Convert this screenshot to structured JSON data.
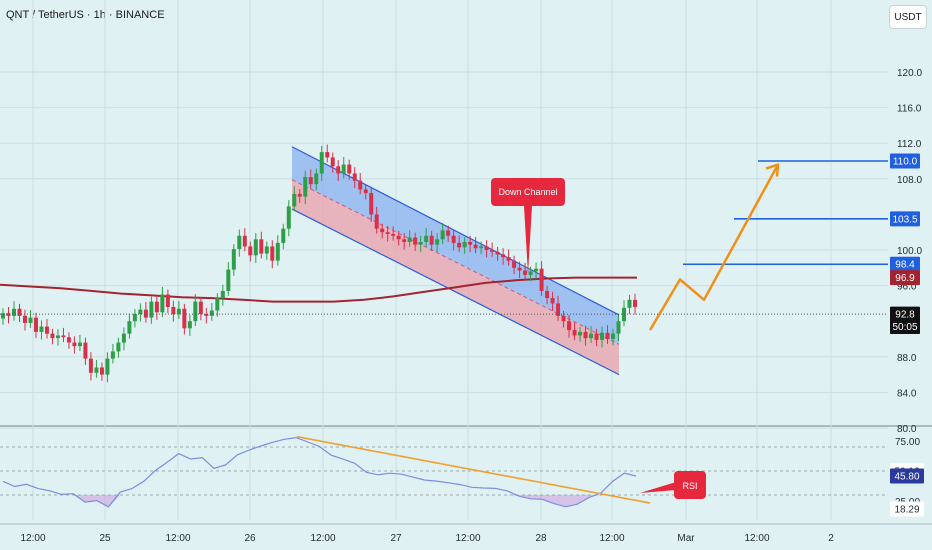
{
  "header": {
    "symbol_title": "QNT / TetherUS · 1h · BINANCE",
    "currency_badge": "USDT"
  },
  "colors": {
    "background": "#e0f1f3",
    "grid": "#c9e0e3",
    "up_candle": "#2e9e48",
    "down_candle": "#d9304a",
    "ma_line": "#a32431",
    "channel_line": "#2a5bdb",
    "channel_upper_fill": "#8ab0f0",
    "channel_lower_fill": "#e8a8b2",
    "projection": "#f0901a",
    "level_line": "#1f5fe0",
    "rsi_line": "#7b8ee0",
    "rsi_trend": "#f0a030",
    "annotation_red": "#e5283d"
  },
  "chart_data": [
    {
      "type": "candlestick",
      "x_axis": {
        "tick_labels": [
          "12:00",
          "25",
          "12:00",
          "26",
          "12:00",
          "27",
          "12:00",
          "28",
          "12:00",
          "Mar",
          "12:00",
          "2"
        ]
      },
      "y_axis": {
        "tick_labels": [
          "120.0",
          "116.0",
          "112.0",
          "108.0",
          "100.0",
          "96.0",
          "88.0",
          "84.0",
          "80.0"
        ],
        "ticks": [
          120,
          116,
          112,
          108,
          100,
          96,
          88,
          84,
          80
        ],
        "range": [
          79.0,
          125.5
        ],
        "label_boxes": [
          {
            "text": "110.0",
            "value": 110.0,
            "color": "#1f5fe0"
          },
          {
            "text": "103.5",
            "value": 103.5,
            "color": "#1f5fe0"
          },
          {
            "text": "98.4",
            "value": 98.4,
            "color": "#1f5fe0"
          },
          {
            "text": "96.9",
            "value": 96.9,
            "color": "#a32431"
          },
          {
            "text": "92.8",
            "value": 92.8,
            "color": "#111111"
          },
          {
            "text": "50:05",
            "value": 91.4,
            "color": "#111111"
          }
        ]
      },
      "candles_close": [
        92.9,
        92.6,
        93.4,
        92.6,
        91.8,
        92.4,
        90.8,
        91.4,
        90.6,
        90.1,
        90.4,
        90.2,
        89.6,
        89.2,
        89.6,
        87.8,
        86.2,
        86.8,
        86.0,
        87.8,
        88.6,
        89.6,
        90.6,
        92.0,
        92.8,
        93.3,
        92.4,
        94.2,
        93.0,
        95.0,
        93.6,
        92.8,
        93.4,
        91.2,
        92.0,
        94.2,
        92.8,
        92.6,
        93.2,
        94.6,
        95.4,
        97.8,
        100.1,
        101.6,
        100.4,
        99.4,
        101.2,
        99.6,
        100.4,
        98.8,
        100.8,
        102.4,
        104.9,
        106.3,
        106.0,
        108.2,
        107.4,
        108.6,
        111.0,
        110.4,
        109.4,
        108.6,
        109.6,
        108.6,
        107.8,
        106.8,
        106.4,
        104.0,
        102.4,
        102.0,
        101.8,
        101.6,
        101.2,
        100.9,
        101.4,
        100.6,
        100.9,
        101.6,
        100.6,
        101.2,
        102.2,
        101.6,
        100.8,
        100.3,
        100.9,
        100.6,
        100.2,
        100.4,
        100.0,
        99.8,
        99.5,
        99.2,
        98.8,
        98.0,
        97.7,
        97.2,
        97.6,
        97.9,
        95.4,
        94.6,
        94.0,
        92.6,
        92.0,
        91.0,
        90.4,
        90.8,
        90.1,
        90.6,
        89.9,
        90.7,
        90.0,
        90.6,
        92.0,
        93.5,
        94.4,
        93.6
      ],
      "moving_average": [
        96.1,
        95.9,
        95.7,
        95.4,
        95.1,
        94.9,
        94.7,
        94.6,
        94.4,
        94.2,
        94.2,
        94.2,
        94.4,
        94.8,
        95.3,
        95.8,
        96.3,
        96.6,
        96.8,
        96.9,
        96.9,
        96.9
      ],
      "channel": {
        "upper": [
          [
            111.6,
            92.7
          ]
        ],
        "mid": [
          [
            107.9,
            89.4
          ]
        ],
        "lower": [
          [
            104.6,
            86.0
          ]
        ]
      },
      "projection_path": [
        91.0,
        96.7,
        94.4,
        109.6
      ],
      "levels": [
        110.0,
        103.5,
        98.4
      ],
      "annotations": [
        {
          "label": "Down Channel",
          "value": 97.3
        }
      ]
    },
    {
      "type": "line",
      "name": "RSI",
      "y_axis": {
        "tick_labels": [
          "75.00",
          "25.00"
        ],
        "range": [
          12,
          85
        ],
        "label_boxes": [
          {
            "text": "50.16",
            "value": 50.16,
            "color": "#ffffff"
          },
          {
            "text": "45.80",
            "value": 45.8,
            "color": "#2b3a9e"
          },
          {
            "text": "18.29",
            "value": 18.29,
            "color": "#ffffff"
          }
        ]
      },
      "levels": [
        70,
        50,
        30
      ],
      "values": [
        41.3,
        37.1,
        38.9,
        35.3,
        33.5,
        30.5,
        31.1,
        24.1,
        25.3,
        20.2,
        32.3,
        35.3,
        41.3,
        50.4,
        57.3,
        64.5,
        60.0,
        61.2,
        52.2,
        55.2,
        63.5,
        67.5,
        70.8,
        73.9,
        76.4,
        77.8,
        74.2,
        70.4,
        63.2,
        59.9,
        56.4,
        48.9,
        46.8,
        48.2,
        47.3,
        44.8,
        42.4,
        41.6,
        40.2,
        38.7,
        36.4,
        35.8,
        35.5,
        33.5,
        29.1,
        26.8,
        26.4,
        22.8,
        20.2,
        22.3,
        27.9,
        31.7,
        41.3,
        48.2,
        45.8
      ],
      "trendline": [
        78.6,
        23.3
      ],
      "annotations": [
        {
          "label": "RSI",
          "value": 37.3
        }
      ]
    }
  ]
}
